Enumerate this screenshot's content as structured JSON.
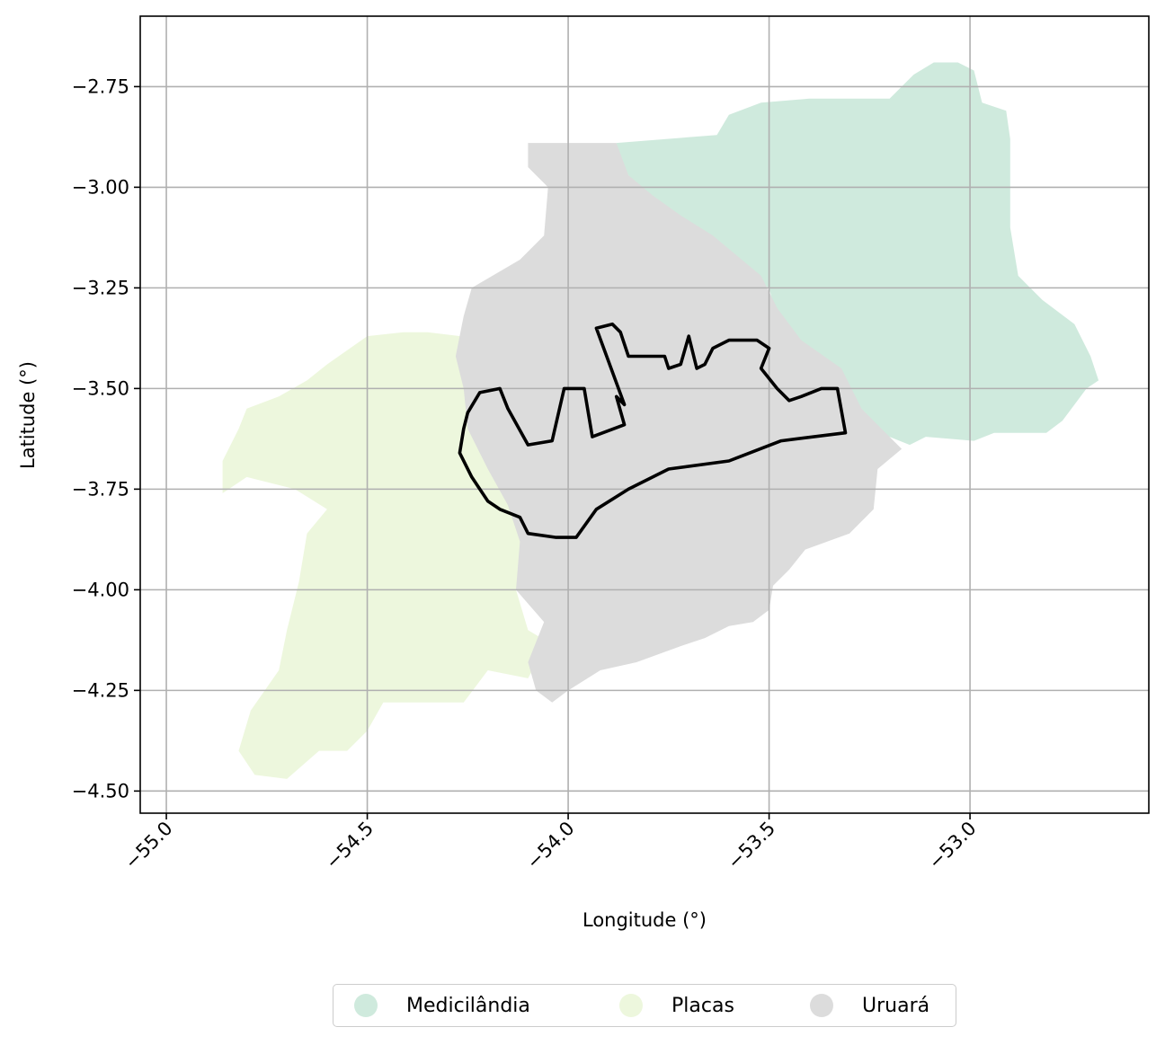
{
  "chart_data": {
    "type": "map",
    "xlabel": "Longitude (°)",
    "ylabel": "Latitude (°)",
    "xlim": [
      -55.065,
      -52.555
    ],
    "ylim": [
      -4.555,
      -2.575
    ],
    "x_ticks": [
      -55.0,
      -54.5,
      -54.0,
      -53.5,
      -53.0
    ],
    "x_tick_labels": [
      "−55.0",
      "−54.5",
      "−54.0",
      "−53.5",
      "−53.0"
    ],
    "y_ticks": [
      -2.75,
      -3.0,
      -3.25,
      -3.5,
      -3.75,
      -4.0,
      -4.25,
      -4.5
    ],
    "y_tick_labels": [
      "−2.75",
      "−3.00",
      "−3.25",
      "−3.50",
      "−3.75",
      "−4.00",
      "−4.25",
      "−4.50"
    ],
    "grid": true,
    "legend_placement": "bottom-center",
    "regions": [
      {
        "name": "Medicilândia",
        "color": "#cfeadd",
        "outline": [
          [
            -53.88,
            -2.89
          ],
          [
            -53.63,
            -2.87
          ],
          [
            -53.6,
            -2.82
          ],
          [
            -53.52,
            -2.79
          ],
          [
            -53.4,
            -2.78
          ],
          [
            -53.2,
            -2.78
          ],
          [
            -53.14,
            -2.72
          ],
          [
            -53.09,
            -2.69
          ],
          [
            -53.03,
            -2.69
          ],
          [
            -52.99,
            -2.71
          ],
          [
            -52.97,
            -2.79
          ],
          [
            -52.91,
            -2.81
          ],
          [
            -52.9,
            -2.88
          ],
          [
            -52.9,
            -3.1
          ],
          [
            -52.88,
            -3.22
          ],
          [
            -52.82,
            -3.28
          ],
          [
            -52.74,
            -3.34
          ],
          [
            -52.7,
            -3.42
          ],
          [
            -52.68,
            -3.48
          ],
          [
            -52.71,
            -3.5
          ],
          [
            -52.77,
            -3.58
          ],
          [
            -52.81,
            -3.61
          ],
          [
            -52.94,
            -3.61
          ],
          [
            -52.99,
            -3.63
          ],
          [
            -53.11,
            -3.62
          ],
          [
            -53.15,
            -3.64
          ],
          [
            -53.25,
            -3.6
          ],
          [
            -53.3,
            -3.5
          ],
          [
            -53.4,
            -3.44
          ],
          [
            -53.48,
            -3.33
          ],
          [
            -53.5,
            -3.25
          ],
          [
            -53.6,
            -3.2
          ],
          [
            -53.66,
            -3.15
          ],
          [
            -53.75,
            -3.06
          ],
          [
            -53.83,
            -3.0
          ],
          [
            -53.87,
            -2.94
          ]
        ]
      },
      {
        "name": "Placas",
        "color": "#edf7dd",
        "outline": [
          [
            -54.41,
            -3.36
          ],
          [
            -54.35,
            -3.36
          ],
          [
            -54.27,
            -3.37
          ],
          [
            -54.24,
            -3.41
          ],
          [
            -54.23,
            -3.6
          ],
          [
            -54.19,
            -3.7
          ],
          [
            -54.14,
            -3.8
          ],
          [
            -54.12,
            -3.87
          ],
          [
            -54.11,
            -3.95
          ],
          [
            -54.13,
            -4.0
          ],
          [
            -54.1,
            -4.1
          ],
          [
            -54.05,
            -4.13
          ],
          [
            -54.1,
            -4.22
          ],
          [
            -54.2,
            -4.2
          ],
          [
            -54.26,
            -4.28
          ],
          [
            -54.36,
            -4.28
          ],
          [
            -54.46,
            -4.28
          ],
          [
            -54.5,
            -4.35
          ],
          [
            -54.55,
            -4.4
          ],
          [
            -54.62,
            -4.4
          ],
          [
            -54.7,
            -4.47
          ],
          [
            -54.78,
            -4.46
          ],
          [
            -54.82,
            -4.4
          ],
          [
            -54.79,
            -4.3
          ],
          [
            -54.72,
            -4.2
          ],
          [
            -54.7,
            -4.1
          ],
          [
            -54.67,
            -3.98
          ],
          [
            -54.65,
            -3.86
          ],
          [
            -54.6,
            -3.8
          ],
          [
            -54.68,
            -3.75
          ],
          [
            -54.8,
            -3.72
          ],
          [
            -54.86,
            -3.76
          ],
          [
            -54.86,
            -3.68
          ],
          [
            -54.82,
            -3.6
          ],
          [
            -54.8,
            -3.55
          ],
          [
            -54.72,
            -3.52
          ],
          [
            -54.65,
            -3.48
          ],
          [
            -54.6,
            -3.44
          ],
          [
            -54.5,
            -3.37
          ]
        ]
      },
      {
        "name": "Uruará",
        "color": "#dcdcdc",
        "outline": [
          [
            -54.1,
            -2.89
          ],
          [
            -53.88,
            -2.89
          ],
          [
            -53.85,
            -2.97
          ],
          [
            -53.79,
            -3.02
          ],
          [
            -53.72,
            -3.07
          ],
          [
            -53.64,
            -3.12
          ],
          [
            -53.58,
            -3.17
          ],
          [
            -53.52,
            -3.22
          ],
          [
            -53.48,
            -3.3
          ],
          [
            -53.42,
            -3.38
          ],
          [
            -53.32,
            -3.45
          ],
          [
            -53.27,
            -3.55
          ],
          [
            -53.22,
            -3.6
          ],
          [
            -53.17,
            -3.65
          ],
          [
            -53.23,
            -3.7
          ],
          [
            -53.24,
            -3.8
          ],
          [
            -53.3,
            -3.86
          ],
          [
            -53.41,
            -3.9
          ],
          [
            -53.45,
            -3.95
          ],
          [
            -53.49,
            -3.99
          ],
          [
            -53.5,
            -4.05
          ],
          [
            -53.54,
            -4.08
          ],
          [
            -53.6,
            -4.09
          ],
          [
            -53.66,
            -4.12
          ],
          [
            -53.72,
            -4.14
          ],
          [
            -53.83,
            -4.18
          ],
          [
            -53.92,
            -4.2
          ],
          [
            -54.0,
            -4.25
          ],
          [
            -54.04,
            -4.28
          ],
          [
            -54.08,
            -4.25
          ],
          [
            -54.1,
            -4.18
          ],
          [
            -54.06,
            -4.08
          ],
          [
            -54.13,
            -4.0
          ],
          [
            -54.12,
            -3.88
          ],
          [
            -54.15,
            -3.79
          ],
          [
            -54.2,
            -3.7
          ],
          [
            -54.25,
            -3.6
          ],
          [
            -54.26,
            -3.5
          ],
          [
            -54.28,
            -3.42
          ],
          [
            -54.26,
            -3.32
          ],
          [
            -54.24,
            -3.25
          ],
          [
            -54.12,
            -3.18
          ],
          [
            -54.06,
            -3.12
          ],
          [
            -54.05,
            -3.0
          ],
          [
            -54.1,
            -2.95
          ]
        ]
      }
    ],
    "highlight_boundary": {
      "color": "#000000",
      "outline": [
        [
          -54.22,
          -3.51
        ],
        [
          -54.17,
          -3.5
        ],
        [
          -54.15,
          -3.55
        ],
        [
          -54.1,
          -3.64
        ],
        [
          -54.04,
          -3.63
        ],
        [
          -54.01,
          -3.5
        ],
        [
          -53.96,
          -3.5
        ],
        [
          -53.94,
          -3.62
        ],
        [
          -53.86,
          -3.59
        ],
        [
          -53.88,
          -3.52
        ],
        [
          -53.86,
          -3.54
        ],
        [
          -53.93,
          -3.35
        ],
        [
          -53.89,
          -3.34
        ],
        [
          -53.87,
          -3.36
        ],
        [
          -53.85,
          -3.42
        ],
        [
          -53.76,
          -3.42
        ],
        [
          -53.75,
          -3.45
        ],
        [
          -53.72,
          -3.44
        ],
        [
          -53.7,
          -3.37
        ],
        [
          -53.68,
          -3.45
        ],
        [
          -53.66,
          -3.44
        ],
        [
          -53.64,
          -3.4
        ],
        [
          -53.6,
          -3.38
        ],
        [
          -53.53,
          -3.38
        ],
        [
          -53.5,
          -3.4
        ],
        [
          -53.52,
          -3.45
        ],
        [
          -53.48,
          -3.5
        ],
        [
          -53.45,
          -3.53
        ],
        [
          -53.42,
          -3.52
        ],
        [
          -53.37,
          -3.5
        ],
        [
          -53.33,
          -3.5
        ],
        [
          -53.31,
          -3.61
        ],
        [
          -53.47,
          -3.63
        ],
        [
          -53.6,
          -3.68
        ],
        [
          -53.75,
          -3.7
        ],
        [
          -53.85,
          -3.75
        ],
        [
          -53.93,
          -3.8
        ],
        [
          -53.98,
          -3.87
        ],
        [
          -54.03,
          -3.87
        ],
        [
          -54.1,
          -3.86
        ],
        [
          -54.12,
          -3.82
        ],
        [
          -54.17,
          -3.8
        ],
        [
          -54.2,
          -3.78
        ],
        [
          -54.24,
          -3.72
        ],
        [
          -54.27,
          -3.66
        ],
        [
          -54.26,
          -3.6
        ],
        [
          -54.25,
          -3.56
        ]
      ]
    }
  },
  "legend": {
    "items": [
      {
        "label": "Medicilândia",
        "color": "#cfeadd"
      },
      {
        "label": "Placas",
        "color": "#edf7dd"
      },
      {
        "label": "Uruará",
        "color": "#dcdcdc"
      }
    ]
  }
}
